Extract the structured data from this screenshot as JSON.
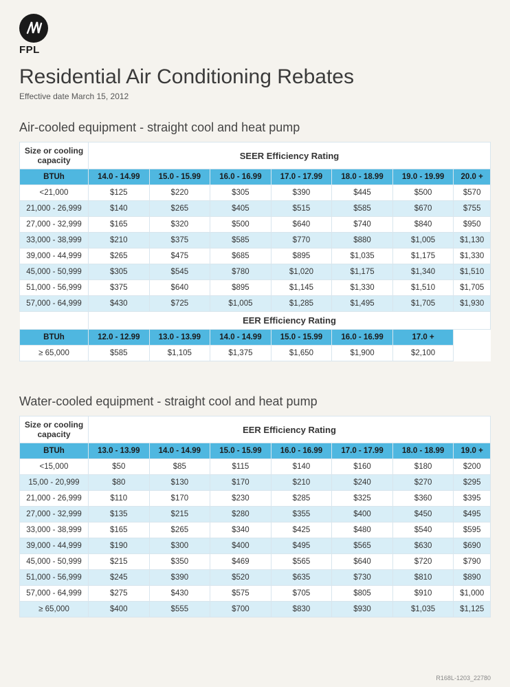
{
  "logo": {
    "text": "FPL"
  },
  "title": "Residential Air Conditioning Rebates",
  "effective": "Effective date March 15, 2012",
  "section1": {
    "title": "Air-cooled equipment - straight cool and heat pump",
    "label": "Size or cooling capacity",
    "rating_label": "SEER Efficiency Rating",
    "col0": "BTUh",
    "cols": [
      "14.0 - 14.99",
      "15.0 - 15.99",
      "16.0 - 16.99",
      "17.0 - 17.99",
      "18.0 - 18.99",
      "19.0 - 19.99",
      "20.0 +"
    ],
    "rows": [
      {
        "k": "<21,000",
        "v": [
          "$125",
          "$220",
          "$305",
          "$390",
          "$445",
          "$500",
          "$570"
        ]
      },
      {
        "k": "21,000 - 26,999",
        "v": [
          "$140",
          "$265",
          "$405",
          "$515",
          "$585",
          "$670",
          "$755"
        ]
      },
      {
        "k": "27,000 - 32,999",
        "v": [
          "$165",
          "$320",
          "$500",
          "$640",
          "$740",
          "$840",
          "$950"
        ]
      },
      {
        "k": "33,000 - 38,999",
        "v": [
          "$210",
          "$375",
          "$585",
          "$770",
          "$880",
          "$1,005",
          "$1,130"
        ]
      },
      {
        "k": "39,000 - 44,999",
        "v": [
          "$265",
          "$475",
          "$685",
          "$895",
          "$1,035",
          "$1,175",
          "$1,330"
        ]
      },
      {
        "k": "45,000 - 50,999",
        "v": [
          "$305",
          "$545",
          "$780",
          "$1,020",
          "$1,175",
          "$1,340",
          "$1,510"
        ]
      },
      {
        "k": "51,000 - 56,999",
        "v": [
          "$375",
          "$640",
          "$895",
          "$1,145",
          "$1,330",
          "$1,510",
          "$1,705"
        ]
      },
      {
        "k": "57,000 - 64,999",
        "v": [
          "$430",
          "$725",
          "$1,005",
          "$1,285",
          "$1,495",
          "$1,705",
          "$1,930"
        ]
      }
    ],
    "eer_label": "EER Efficiency Rating",
    "eer_col0": "BTUh",
    "eer_cols": [
      "12.0 - 12.99",
      "13.0 - 13.99",
      "14.0 - 14.99",
      "15.0 - 15.99",
      "16.0 - 16.99",
      "17.0 +"
    ],
    "eer_row": {
      "k": "≥ 65,000",
      "v": [
        "$585",
        "$1,105",
        "$1,375",
        "$1,650",
        "$1,900",
        "$2,100"
      ]
    }
  },
  "section2": {
    "title": "Water-cooled equipment - straight cool and heat pump",
    "label": "Size or cooling capacity",
    "rating_label": "EER Efficiency Rating",
    "col0": "BTUh",
    "cols": [
      "13.0 - 13.99",
      "14.0 - 14.99",
      "15.0 - 15.99",
      "16.0 - 16.99",
      "17.0 - 17.99",
      "18.0 - 18.99",
      "19.0 +"
    ],
    "rows": [
      {
        "k": "<15,000",
        "v": [
          "$50",
          "$85",
          "$115",
          "$140",
          "$160",
          "$180",
          "$200"
        ]
      },
      {
        "k": "15,00 - 20,999",
        "v": [
          "$80",
          "$130",
          "$170",
          "$210",
          "$240",
          "$270",
          "$295"
        ]
      },
      {
        "k": "21,000 - 26,999",
        "v": [
          "$110",
          "$170",
          "$230",
          "$285",
          "$325",
          "$360",
          "$395"
        ]
      },
      {
        "k": "27,000 - 32,999",
        "v": [
          "$135",
          "$215",
          "$280",
          "$355",
          "$400",
          "$450",
          "$495"
        ]
      },
      {
        "k": "33,000 - 38,999",
        "v": [
          "$165",
          "$265",
          "$340",
          "$425",
          "$480",
          "$540",
          "$595"
        ]
      },
      {
        "k": "39,000 - 44,999",
        "v": [
          "$190",
          "$300",
          "$400",
          "$495",
          "$565",
          "$630",
          "$690"
        ]
      },
      {
        "k": "45,000 - 50,999",
        "v": [
          "$215",
          "$350",
          "$469",
          "$565",
          "$640",
          "$720",
          "$790"
        ]
      },
      {
        "k": "51,000 - 56,999",
        "v": [
          "$245",
          "$390",
          "$520",
          "$635",
          "$730",
          "$810",
          "$890"
        ]
      },
      {
        "k": "57,000 - 64,999",
        "v": [
          "$275",
          "$430",
          "$575",
          "$705",
          "$805",
          "$910",
          "$1,000"
        ]
      },
      {
        "k": "≥ 65,000",
        "v": [
          "$400",
          "$555",
          "$700",
          "$830",
          "$930",
          "$1,035",
          "$1,125"
        ]
      }
    ]
  },
  "footer": "R168L-1203_22780",
  "style": {
    "page_bg": "#f5f3ee",
    "band_blue": "#4fb7e0",
    "row_light": "#d8eef7",
    "row_white": "#ffffff",
    "border": "#d8e5ed",
    "title_size_pt": 30,
    "section_title_size_pt": 18,
    "table_font_pt": 11.5
  }
}
